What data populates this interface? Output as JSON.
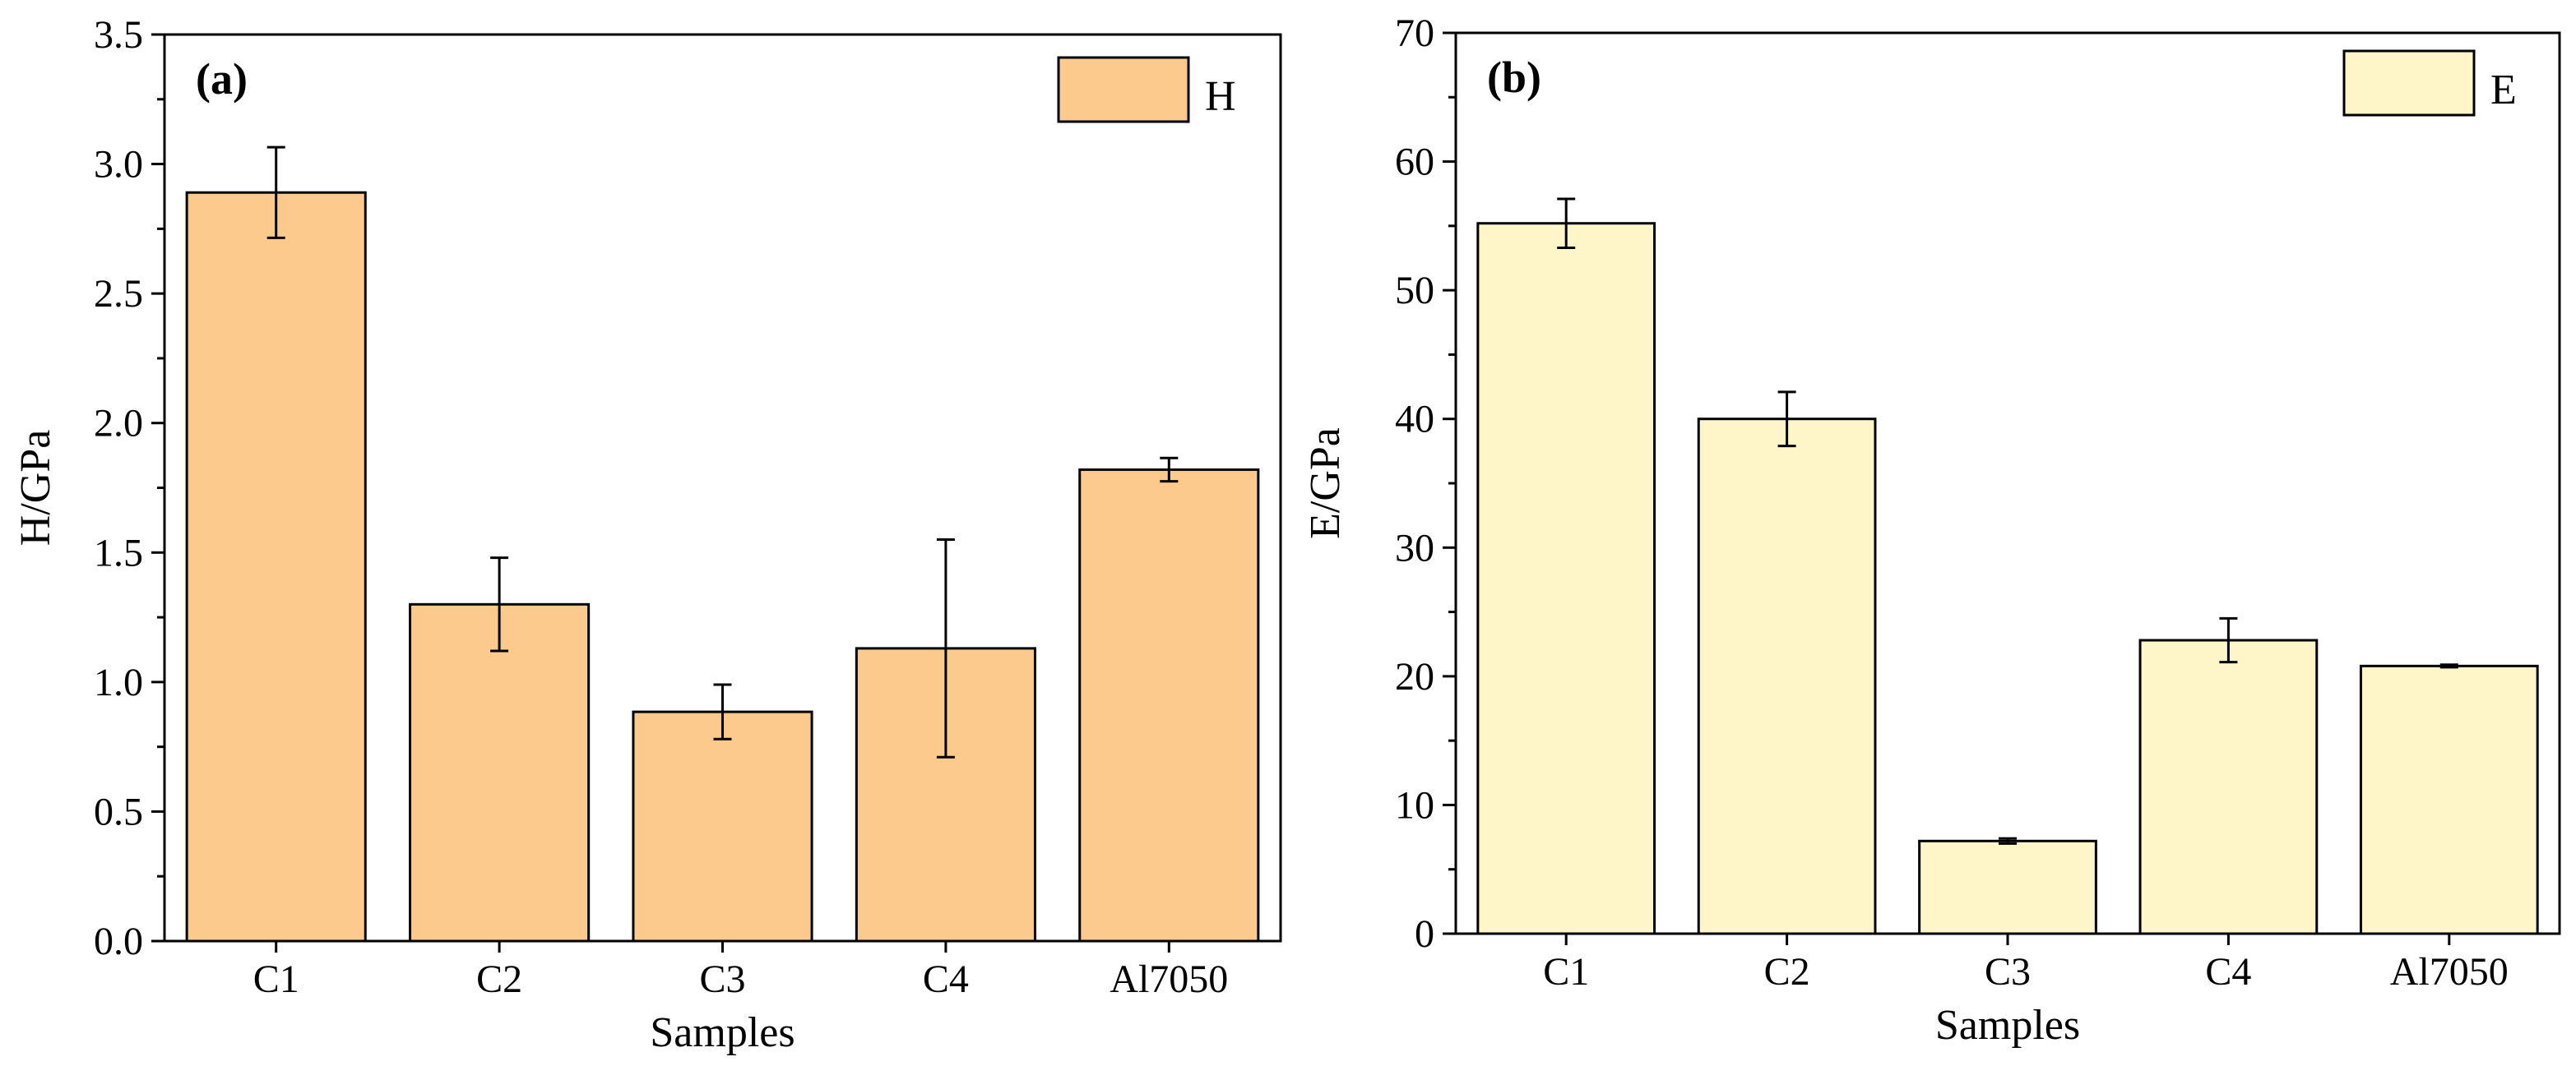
{
  "chart_data": [
    {
      "id": "a",
      "type": "bar",
      "panel_label": "(a)",
      "categories": [
        "C1",
        "C2",
        "C3",
        "C4",
        "Al7050"
      ],
      "series": [
        {
          "name": "H",
          "values": [
            2.89,
            1.3,
            0.885,
            1.13,
            1.82
          ],
          "errors": [
            0.175,
            0.18,
            0.105,
            0.42,
            0.045
          ],
          "color": "#fdca8e"
        }
      ],
      "xlabel": "Samples",
      "ylabel": "H/GPa",
      "ylim": [
        0,
        3.5
      ],
      "yticks": [
        "0.0",
        "0.5",
        "1.0",
        "1.5",
        "2.0",
        "2.5",
        "3.0",
        "3.5"
      ],
      "ytick_values": [
        0,
        0.5,
        1.0,
        1.5,
        2.0,
        2.5,
        3.0,
        3.5
      ],
      "grid": false,
      "legend_position": "top-right"
    },
    {
      "id": "b",
      "type": "bar",
      "panel_label": "(b)",
      "categories": [
        "C1",
        "C2",
        "C3",
        "C4",
        "Al7050"
      ],
      "series": [
        {
          "name": "E",
          "values": [
            55.2,
            40.0,
            7.2,
            22.8,
            20.8
          ],
          "errors": [
            1.9,
            2.1,
            0.2,
            1.7,
            0.1
          ],
          "color": "#fef6c8"
        }
      ],
      "xlabel": "Samples",
      "ylabel": "E/GPa",
      "ylim": [
        0,
        70
      ],
      "yticks": [
        "0",
        "10",
        "20",
        "30",
        "40",
        "50",
        "60",
        "70"
      ],
      "ytick_values": [
        0,
        10,
        20,
        30,
        40,
        50,
        60,
        70
      ],
      "grid": false,
      "legend_position": "top-right"
    }
  ]
}
